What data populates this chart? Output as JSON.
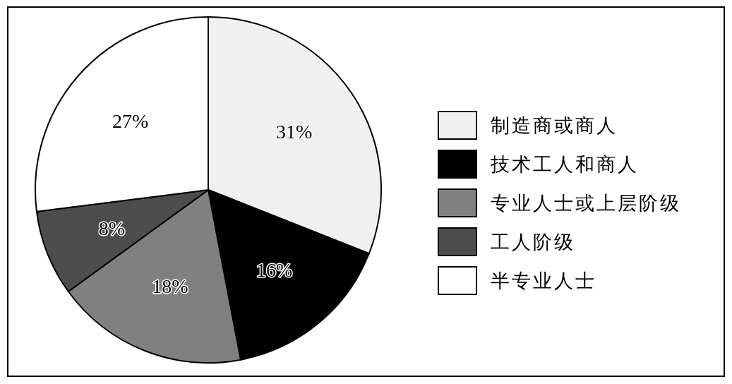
{
  "chart_data": {
    "type": "pie",
    "categories": [
      "制造商或商人",
      "技术工人和商人",
      "专业人士或上层阶级",
      "工人阶级",
      "半专业人士"
    ],
    "values": [
      31,
      16,
      18,
      8,
      27
    ],
    "colors": [
      "#f0f0f0",
      "#000000",
      "#808080",
      "#4d4d4d",
      "#ffffff"
    ],
    "value_labels": [
      "31%",
      "16%",
      "18%",
      "8%",
      "27%"
    ],
    "legend": "right"
  }
}
